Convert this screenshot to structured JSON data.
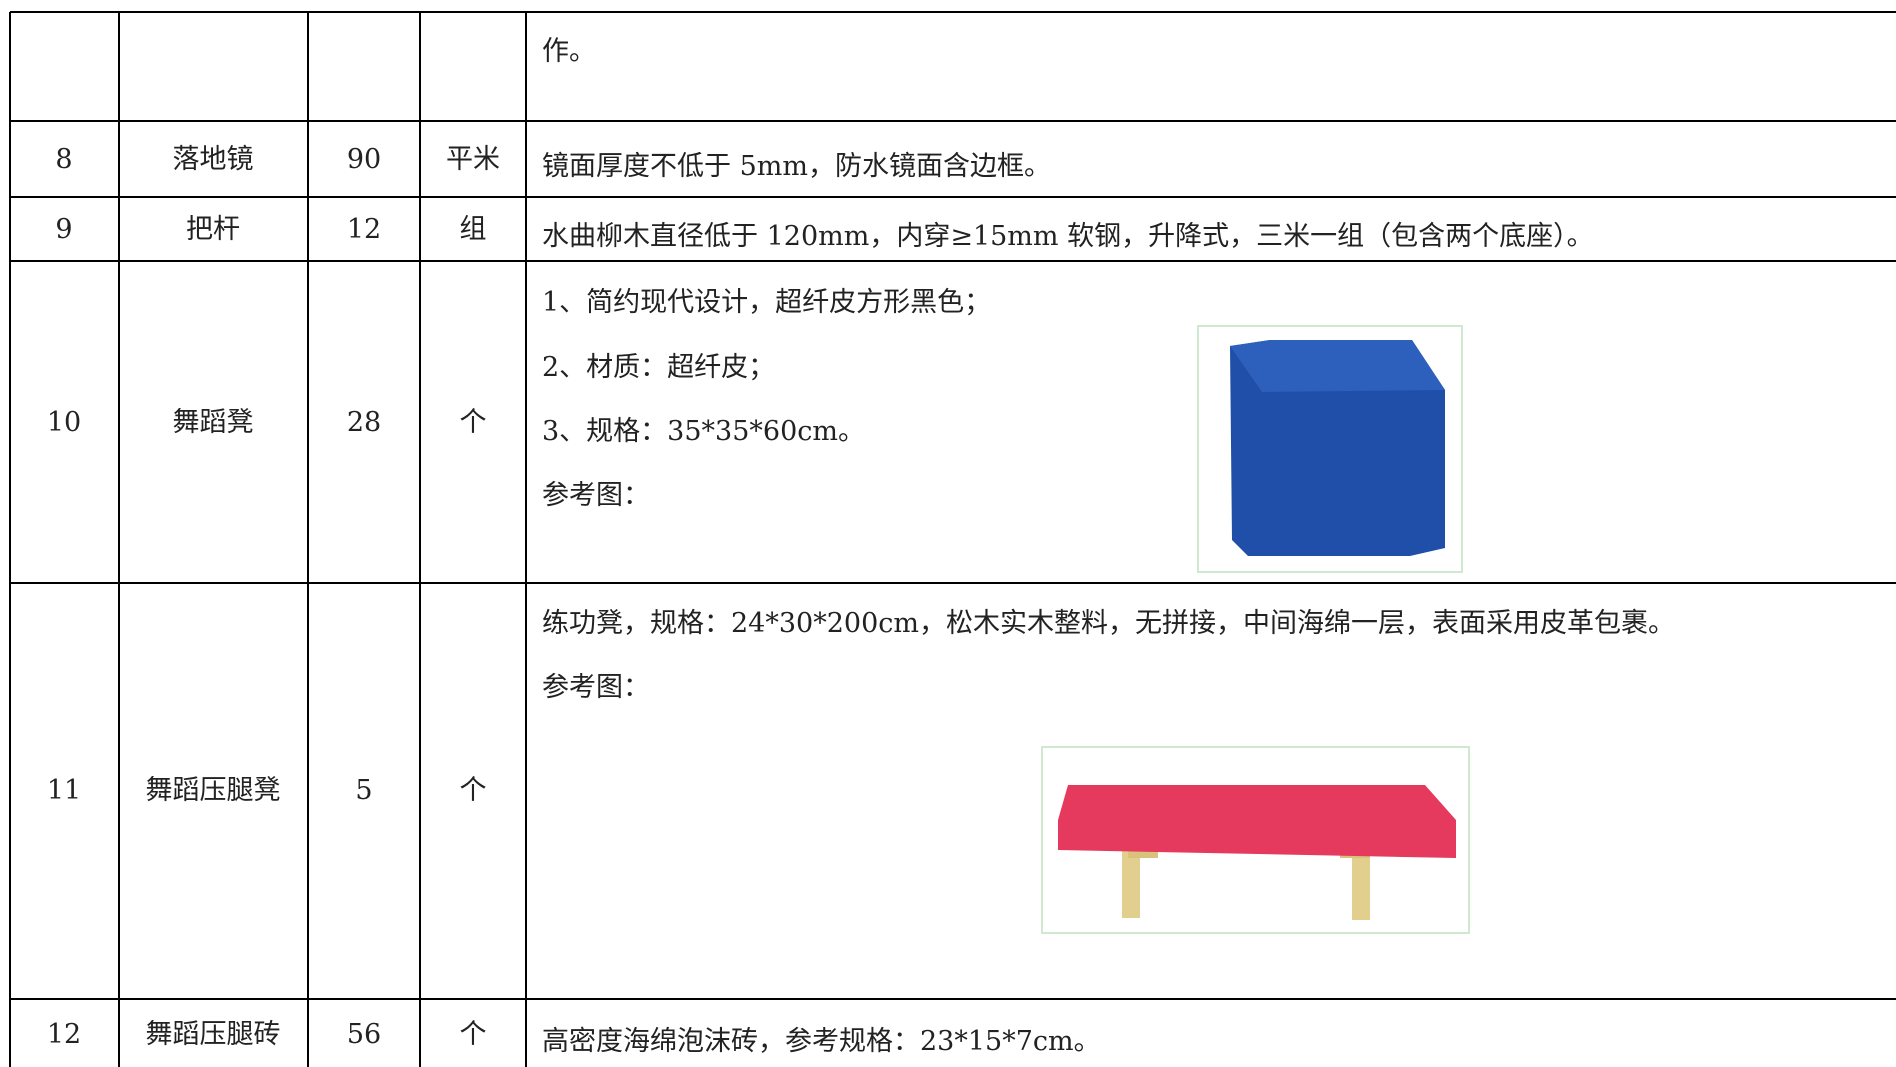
{
  "table": {
    "rows": [
      {
        "desc": [
          "作。"
        ]
      },
      {
        "no": "8",
        "name": "落地镜",
        "qty": "90",
        "unit": "平米",
        "desc": [
          "镜面厚度不低于 5mm，防水镜面含边框。"
        ]
      },
      {
        "no": "9",
        "name": "把杆",
        "qty": "12",
        "unit": "组",
        "desc": [
          "水曲柳木直径低于 120mm，内穿≥15mm 软钢，升降式，三米一组（包含两个底座）。"
        ]
      },
      {
        "no": "10",
        "name": "舞蹈凳",
        "qty": "28",
        "unit": "个",
        "desc": [
          "1、简约现代设计，超纤皮方形黑色；",
          "2、材质：超纤皮；",
          "3、规格：35*35*60cm。",
          "参考图："
        ]
      },
      {
        "no": "11",
        "name": "舞蹈压腿凳",
        "qty": "5",
        "unit": "个",
        "desc": [
          "练功凳，规格：24*30*200cm，松木实木整料，无拼接，中间海绵一层，表面采用皮革包裹。",
          "参考图："
        ]
      },
      {
        "no": "12",
        "name": "舞蹈压腿砖",
        "qty": "56",
        "unit": "个",
        "desc": [
          "高密度海绵泡沫砖，参考规格：23*15*7cm。"
        ]
      }
    ]
  }
}
